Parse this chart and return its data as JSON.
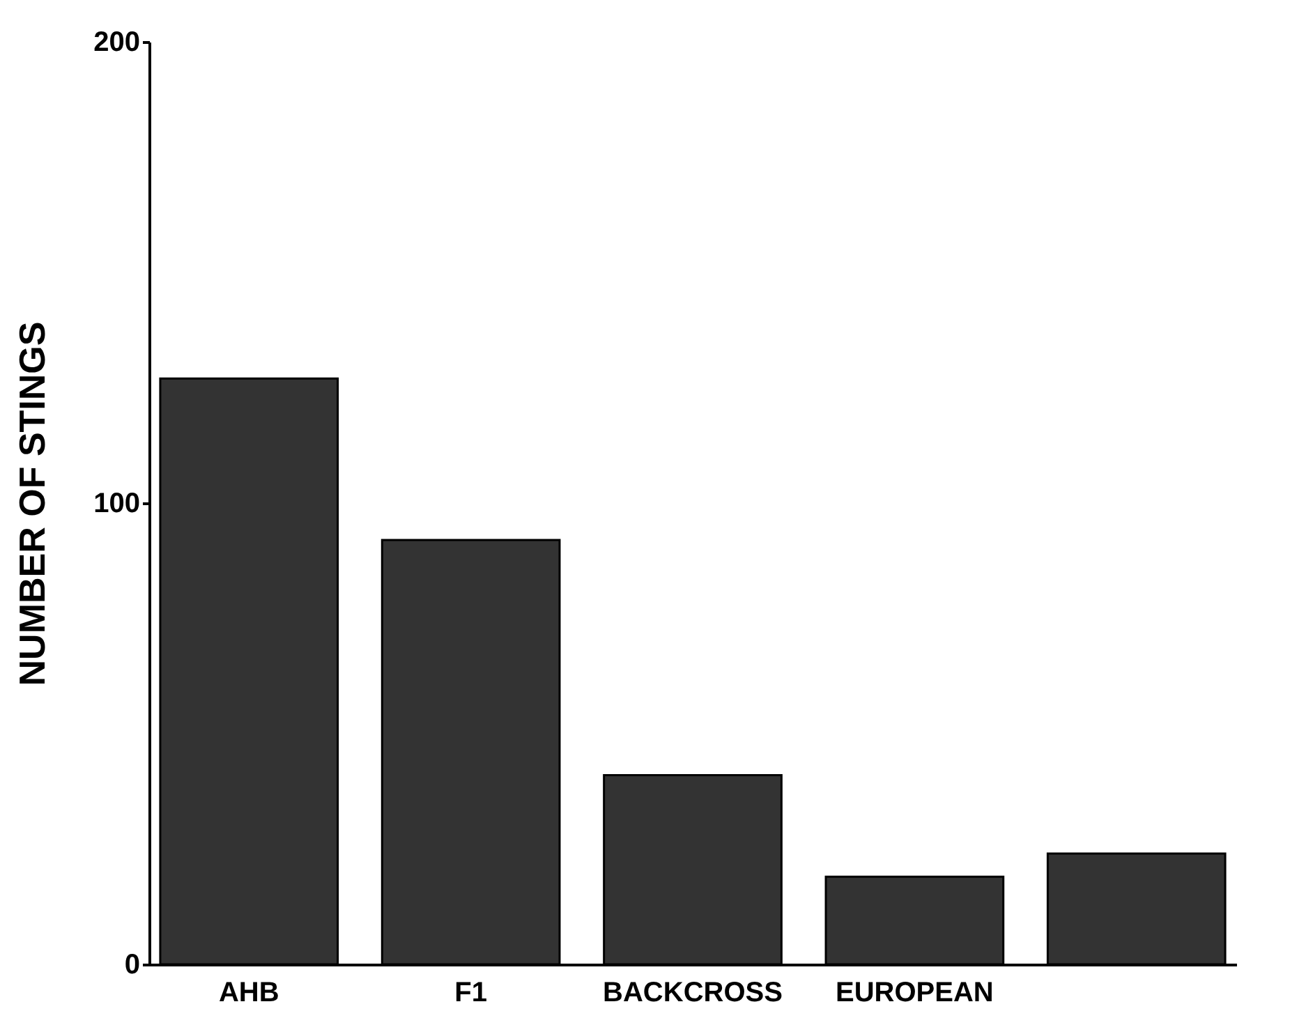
{
  "chart_data": {
    "type": "bar",
    "ylabel": "NUMBER OF STINGS",
    "categories": [
      "AHB",
      "F1",
      "BACKCROSS",
      "EUROPEAN",
      null
    ],
    "values": [
      127,
      92,
      41,
      19,
      24
    ],
    "color": "#333333",
    "ylim": [
      0,
      200
    ],
    "yticks": [
      0,
      100,
      200
    ],
    "grid": false
  }
}
